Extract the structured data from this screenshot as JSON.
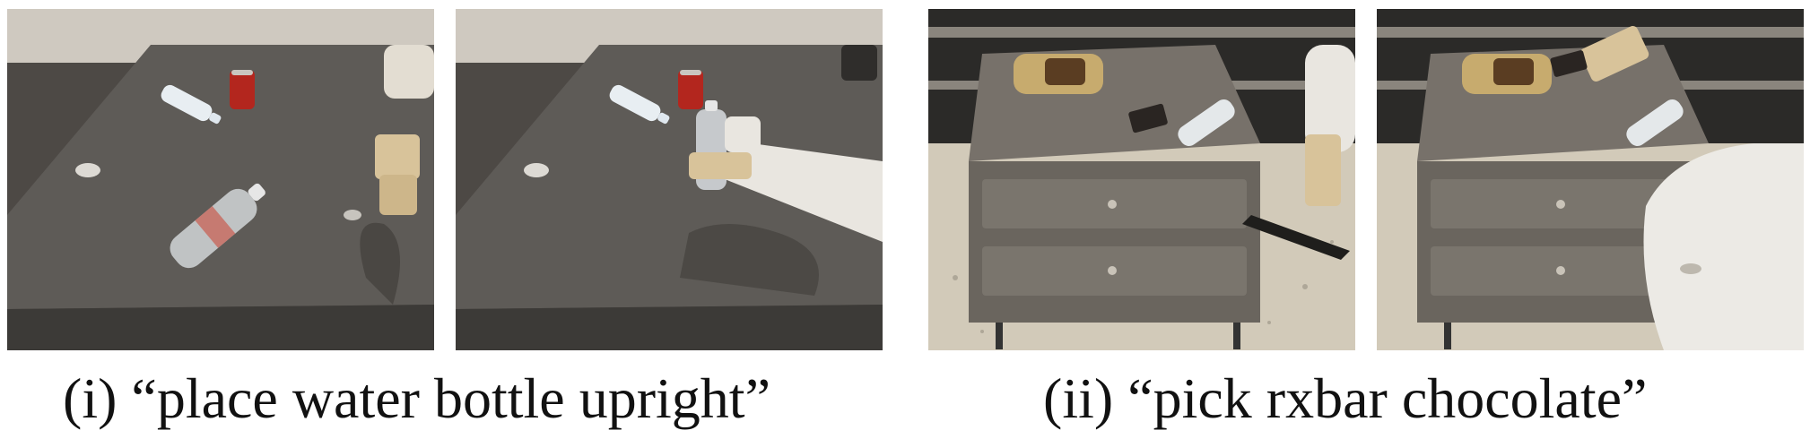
{
  "captions": {
    "left": "(i) “place water bottle upright”",
    "right": "(ii) “pick rxbar chocolate”"
  },
  "panels": [
    {
      "scene": "tabletop-bottle-before"
    },
    {
      "scene": "tabletop-bottle-after"
    },
    {
      "scene": "cabinet-rxbar-before"
    },
    {
      "scene": "cabinet-rxbar-after"
    }
  ],
  "colors": {
    "table_top": "#5e5b57",
    "floor_dark": "#4a4744",
    "floor_speckle": "#d8d2c6",
    "can_red": "#b3261e",
    "robot_white": "#e9e6e0",
    "gripper_tan": "#d8c39a"
  }
}
